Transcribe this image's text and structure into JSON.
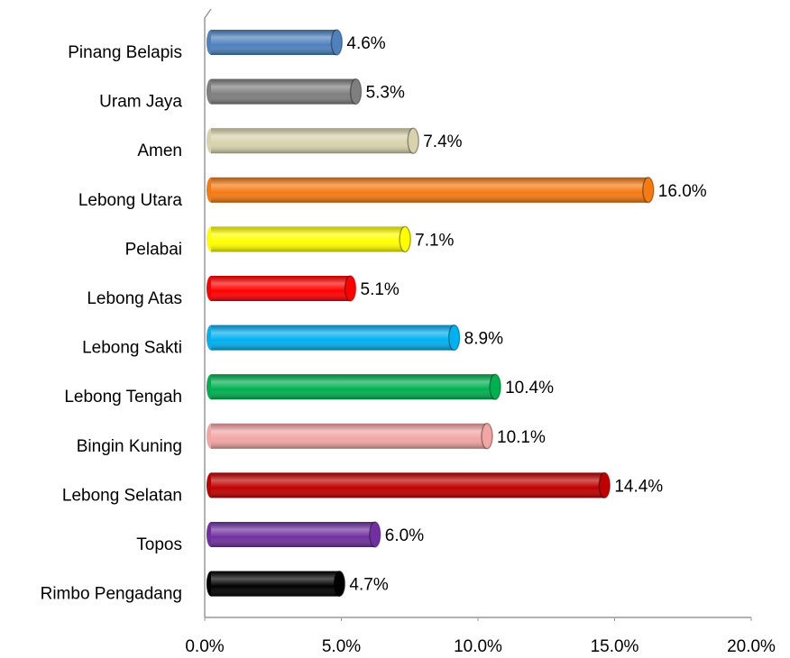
{
  "chart_data": {
    "type": "bar",
    "orientation": "horizontal",
    "categories": [
      "Pinang Belapis",
      "Uram Jaya",
      "Amen",
      "Lebong Utara",
      "Pelabai",
      "Lebong Atas",
      "Lebong Sakti",
      "Lebong Tengah",
      "Bingin Kuning",
      "Lebong  Selatan",
      "Topos",
      "Rimbo Pengadang"
    ],
    "values": [
      4.6,
      5.3,
      7.4,
      16.0,
      7.1,
      5.1,
      8.9,
      10.4,
      10.1,
      14.4,
      6.0,
      4.7
    ],
    "value_labels": [
      "4.6%",
      "5.3%",
      "7.4%",
      "16.0%",
      "7.1%",
      "5.1%",
      "8.9%",
      "10.4%",
      "10.1%",
      "14.4%",
      "6.0%",
      "4.7%"
    ],
    "colors": [
      "#4f81bd",
      "#7f7f7f",
      "#d8d3ad",
      "#f57a12",
      "#ffff00",
      "#ff0000",
      "#00b0f0",
      "#00b050",
      "#f2a5a5",
      "#c00000",
      "#7030a0",
      "#000000"
    ],
    "xlim": [
      0,
      20
    ],
    "xticks": [
      {
        "value": 0,
        "label": "0.0%"
      },
      {
        "value": 5,
        "label": "5.0%"
      },
      {
        "value": 10,
        "label": "10.0%"
      },
      {
        "value": 15,
        "label": "15.0%"
      },
      {
        "value": 20,
        "label": "20.0%"
      }
    ]
  }
}
